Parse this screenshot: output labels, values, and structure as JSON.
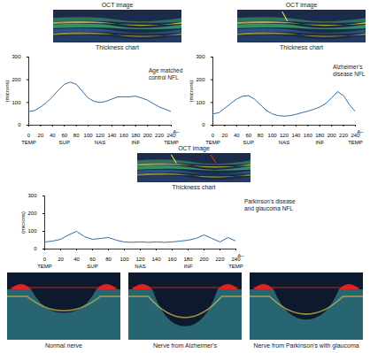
{
  "chart_data": [
    {
      "type": "line",
      "image_title": "OCT image",
      "title": "Thickness chart",
      "annotation": "Age matched control NFL",
      "ylabel": "(microns)",
      "xlabel": "A–",
      "color": "#2e6da4",
      "x": [
        0,
        10,
        20,
        30,
        40,
        50,
        60,
        70,
        80,
        90,
        100,
        110,
        120,
        130,
        140,
        150,
        160,
        170,
        180,
        190,
        200,
        210,
        220,
        230,
        240
      ],
      "values": [
        60,
        65,
        80,
        100,
        125,
        155,
        180,
        190,
        180,
        150,
        120,
        105,
        100,
        105,
        115,
        125,
        125,
        125,
        128,
        120,
        110,
        95,
        80,
        70,
        60
      ],
      "xlim": [
        0,
        240
      ],
      "ylim": [
        0,
        300
      ],
      "xticks": [
        0,
        20,
        40,
        60,
        80,
        100,
        120,
        140,
        160,
        180,
        200,
        220,
        240
      ],
      "yticks": [
        0,
        100,
        200,
        300
      ],
      "x_regions": [
        {
          "value": 0,
          "label": "TEMP"
        },
        {
          "value": 60,
          "label": "SUP"
        },
        {
          "value": 120,
          "label": "NAS"
        },
        {
          "value": 180,
          "label": "INF"
        },
        {
          "value": 240,
          "label": "TEMP"
        }
      ]
    },
    {
      "type": "line",
      "image_title": "OCT image",
      "title": "Thickness chart",
      "annotation": "Alzheimer's disease NFL",
      "ylabel": "(microns)",
      "xlabel": "A–",
      "color": "#2e6da4",
      "x": [
        0,
        10,
        20,
        30,
        40,
        50,
        60,
        70,
        80,
        90,
        100,
        110,
        120,
        130,
        140,
        150,
        160,
        170,
        180,
        190,
        200,
        210,
        220,
        230,
        240
      ],
      "values": [
        50,
        55,
        75,
        95,
        115,
        128,
        130,
        115,
        90,
        65,
        50,
        42,
        40,
        42,
        48,
        55,
        62,
        70,
        80,
        95,
        120,
        148,
        130,
        90,
        60
      ],
      "xlim": [
        0,
        240
      ],
      "ylim": [
        0,
        300
      ],
      "xticks": [
        0,
        20,
        40,
        60,
        80,
        100,
        120,
        140,
        160,
        180,
        200,
        220,
        240
      ],
      "yticks": [
        0,
        100,
        200,
        300
      ],
      "x_regions": [
        {
          "value": 0,
          "label": "TEMP"
        },
        {
          "value": 60,
          "label": "SUP"
        },
        {
          "value": 120,
          "label": "NAS"
        },
        {
          "value": 180,
          "label": "INF"
        },
        {
          "value": 240,
          "label": "TEMP"
        }
      ]
    },
    {
      "type": "line",
      "image_title": "OCT image",
      "title": "Thickness chart",
      "annotation": "Parkinson's disease and glaucoma NFL",
      "ylabel": "(microns)",
      "xlabel": "A–",
      "color": "#2e6da4",
      "x": [
        0,
        10,
        20,
        30,
        40,
        50,
        60,
        70,
        80,
        90,
        100,
        110,
        120,
        130,
        140,
        150,
        160,
        170,
        180,
        190,
        200,
        210,
        220,
        230,
        240
      ],
      "values": [
        40,
        45,
        55,
        80,
        100,
        70,
        55,
        60,
        65,
        50,
        40,
        38,
        40,
        38,
        40,
        38,
        40,
        45,
        50,
        60,
        80,
        60,
        40,
        65,
        45
      ],
      "xlim": [
        0,
        240
      ],
      "ylim": [
        0,
        300
      ],
      "xticks": [
        0,
        20,
        40,
        60,
        80,
        100,
        120,
        140,
        160,
        180,
        200,
        220,
        240
      ],
      "yticks": [
        0,
        100,
        200,
        300
      ],
      "x_regions": [
        {
          "value": 0,
          "label": "TEMP"
        },
        {
          "value": 60,
          "label": "SUP"
        },
        {
          "value": 120,
          "label": "NAS"
        },
        {
          "value": 180,
          "label": "INF"
        },
        {
          "value": 240,
          "label": "TEMP"
        }
      ]
    }
  ],
  "images": {
    "captions": [
      "Normal nerve",
      "Nerve from Alzheimer's",
      "Nerve from Parkinson's with glaucoma"
    ]
  }
}
